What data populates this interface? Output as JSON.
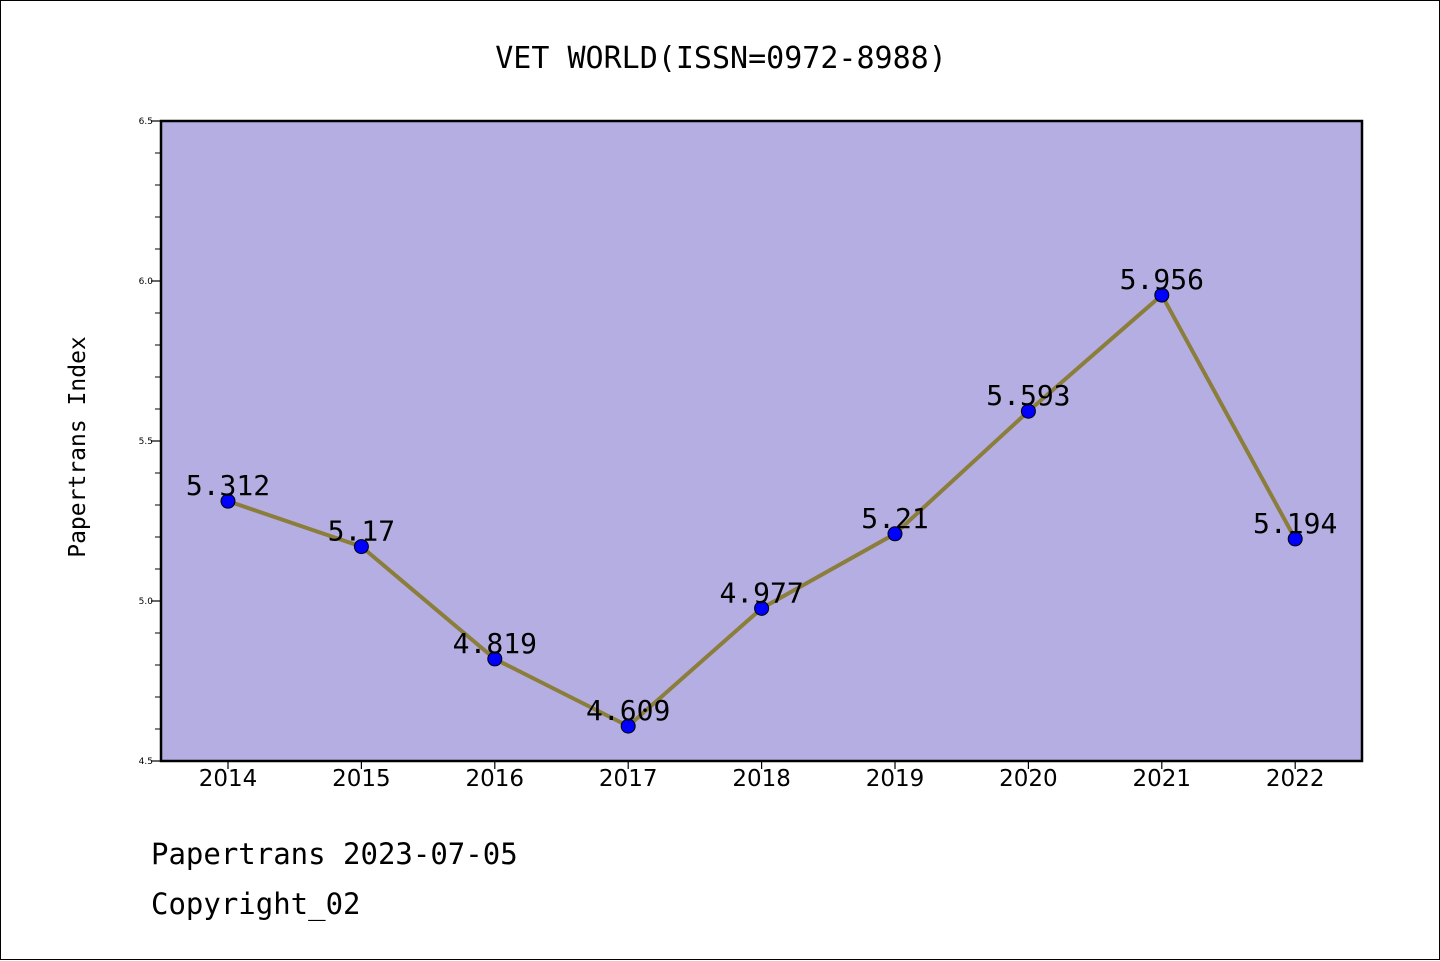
{
  "chart_data": {
    "type": "line",
    "title": "VET WORLD(ISSN=0972-8988)",
    "xlabel": "",
    "ylabel": "Papertrans Index",
    "categories": [
      "2014",
      "2015",
      "2016",
      "2017",
      "2018",
      "2019",
      "2020",
      "2021",
      "2022"
    ],
    "series": [
      {
        "values": [
          5.312,
          5.17,
          4.819,
          4.609,
          4.977,
          5.21,
          5.593,
          5.956,
          5.194
        ],
        "labels": [
          "5.312",
          "5.17",
          "4.819",
          "4.609",
          "4.977",
          "5.21",
          "5.593",
          "5.956",
          "5.194"
        ],
        "line_color": "#8b7d3a",
        "marker_color": "#0000ff"
      }
    ],
    "ylim": [
      4.5,
      6.5
    ],
    "yticks": [
      "4.5",
      "5.0",
      "5.5",
      "6.0",
      "6.5"
    ],
    "yticks_values": [
      4.5,
      5.0,
      5.5,
      6.0,
      6.5
    ],
    "grid": false,
    "legend": "none",
    "plot_background": "#b4aee2"
  },
  "footer": {
    "line1": "Papertrans 2023-07-05",
    "line2": "Copyright_02"
  }
}
